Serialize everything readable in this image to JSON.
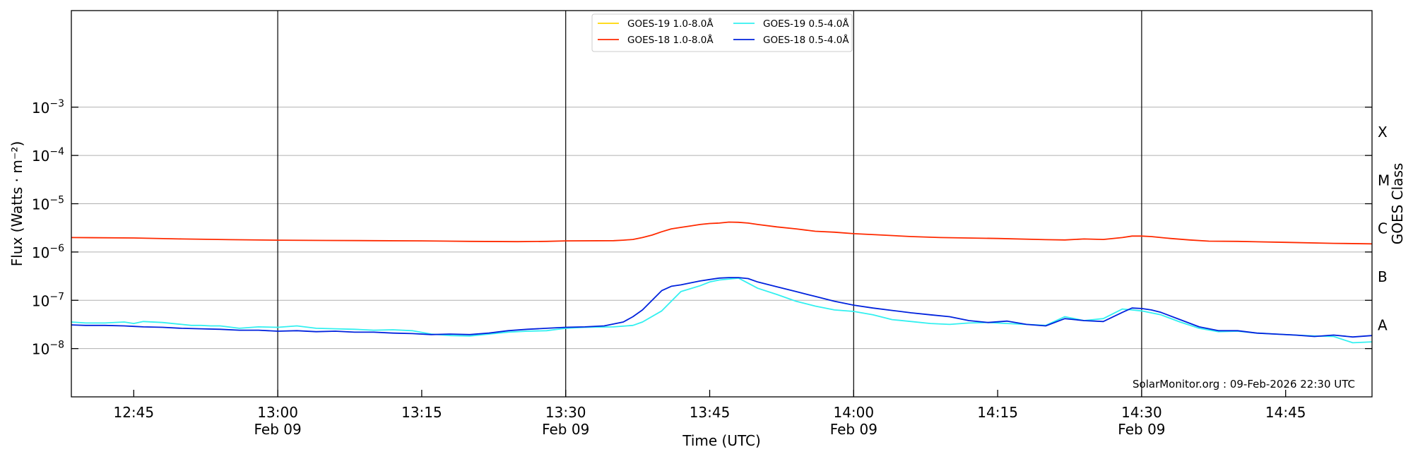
{
  "chart_data": {
    "type": "line",
    "xlabel": "Time (UTC)",
    "ylabel": "Flux (Watts · m⁻²)",
    "ylabel_right": "GOES Class",
    "x_unit": "minutes after 12:00 UTC, 09 Feb",
    "xlim": [
      38.5,
      174
    ],
    "ylim_log10": [
      -9,
      -1.0
    ],
    "y_scale": "log",
    "grid": {
      "horizontal": true,
      "vertical_at_half_hours": true
    },
    "legend_placement": "top-center",
    "credit": "SolarMonitor.org : 09-Feb-2026 22:30 UTC",
    "x_ticks": [
      {
        "m": 45,
        "label": "12:45",
        "date": ""
      },
      {
        "m": 60,
        "label": "13:00",
        "date": "Feb 09"
      },
      {
        "m": 75,
        "label": "13:15",
        "date": ""
      },
      {
        "m": 90,
        "label": "13:30",
        "date": "Feb 09"
      },
      {
        "m": 105,
        "label": "13:45",
        "date": ""
      },
      {
        "m": 120,
        "label": "14:00",
        "date": "Feb 09"
      },
      {
        "m": 135,
        "label": "14:15",
        "date": ""
      },
      {
        "m": 150,
        "label": "14:30",
        "date": "Feb 09"
      },
      {
        "m": 165,
        "label": "14:45",
        "date": ""
      }
    ],
    "y_ticks": [
      {
        "exp": -8,
        "base": "10",
        "sup": "−8"
      },
      {
        "exp": -7,
        "base": "10",
        "sup": "−7"
      },
      {
        "exp": -6,
        "base": "10",
        "sup": "−6"
      },
      {
        "exp": -5,
        "base": "10",
        "sup": "−5"
      },
      {
        "exp": -4,
        "base": "10",
        "sup": "−4"
      },
      {
        "exp": -3,
        "base": "10",
        "sup": "−3"
      }
    ],
    "class_labels": [
      {
        "exp": -7.5,
        "label": "A"
      },
      {
        "exp": -6.5,
        "label": "B"
      },
      {
        "exp": -5.5,
        "label": "C"
      },
      {
        "exp": -4.5,
        "label": "M"
      },
      {
        "exp": -3.5,
        "label": "X"
      }
    ],
    "series": [
      {
        "name": "GOES-19 1.0-8.0Å",
        "color": "#ffd700",
        "log10_flux": []
      },
      {
        "name": "GOES-18 1.0-8.0Å",
        "color": "#ff2a00",
        "x": [
          38.5,
          45,
          50,
          55,
          60,
          65,
          70,
          75,
          80,
          85,
          88,
          90,
          95,
          96,
          97,
          98,
          99,
          100,
          101,
          102,
          103,
          104,
          105,
          106,
          107,
          108,
          109,
          110,
          112,
          114,
          115,
          116,
          118,
          120,
          123,
          126,
          129,
          135,
          140,
          142,
          144,
          146,
          148,
          149,
          150,
          151,
          152,
          153,
          155,
          157,
          160,
          165,
          170,
          174
        ],
        "log10_flux": [
          -5.7,
          -5.71,
          -5.73,
          -5.745,
          -5.755,
          -5.76,
          -5.765,
          -5.77,
          -5.78,
          -5.785,
          -5.78,
          -5.77,
          -5.765,
          -5.755,
          -5.74,
          -5.7,
          -5.65,
          -5.58,
          -5.52,
          -5.49,
          -5.46,
          -5.43,
          -5.41,
          -5.4,
          -5.38,
          -5.385,
          -5.4,
          -5.43,
          -5.48,
          -5.52,
          -5.545,
          -5.57,
          -5.59,
          -5.62,
          -5.65,
          -5.68,
          -5.7,
          -5.72,
          -5.745,
          -5.75,
          -5.73,
          -5.74,
          -5.7,
          -5.67,
          -5.67,
          -5.68,
          -5.7,
          -5.72,
          -5.75,
          -5.775,
          -5.78,
          -5.8,
          -5.82,
          -5.83
        ]
      },
      {
        "name": "GOES-19 0.5-4.0Å",
        "color": "#33f0f0",
        "x": [
          38.5,
          40,
          42,
          44,
          45,
          46,
          48,
          50,
          51,
          52,
          53,
          54,
          56,
          58,
          60,
          62,
          64,
          66,
          68,
          70,
          72,
          74,
          76,
          78,
          80,
          82,
          84,
          86,
          88,
          90,
          92,
          95,
          97,
          98,
          100,
          102,
          104,
          105,
          106,
          108,
          110,
          112,
          114,
          116,
          118,
          120,
          122,
          124,
          126,
          128,
          130,
          132,
          134,
          136,
          138,
          140,
          142,
          144,
          146,
          148,
          149,
          150,
          152,
          154,
          156,
          158,
          160,
          162,
          164,
          166,
          168,
          170,
          172,
          174
        ],
        "log10_flux": [
          -7.45,
          -7.47,
          -7.47,
          -7.45,
          -7.48,
          -7.44,
          -7.46,
          -7.5,
          -7.52,
          -7.52,
          -7.53,
          -7.53,
          -7.58,
          -7.55,
          -7.56,
          -7.53,
          -7.58,
          -7.59,
          -7.6,
          -7.62,
          -7.61,
          -7.63,
          -7.7,
          -7.73,
          -7.74,
          -7.7,
          -7.66,
          -7.64,
          -7.63,
          -7.58,
          -7.56,
          -7.55,
          -7.52,
          -7.45,
          -7.22,
          -6.82,
          -6.7,
          -6.62,
          -6.58,
          -6.54,
          -6.75,
          -6.88,
          -7.02,
          -7.12,
          -7.2,
          -7.23,
          -7.3,
          -7.4,
          -7.44,
          -7.48,
          -7.5,
          -7.47,
          -7.46,
          -7.48,
          -7.5,
          -7.52,
          -7.34,
          -7.42,
          -7.38,
          -7.18,
          -7.2,
          -7.22,
          -7.3,
          -7.45,
          -7.58,
          -7.65,
          -7.64,
          -7.68,
          -7.7,
          -7.72,
          -7.74,
          -7.75,
          -7.88,
          -7.86
        ]
      },
      {
        "name": "GOES-18 0.5-4.0Å",
        "color": "#0022dd",
        "x": [
          38.5,
          40,
          42,
          44,
          45,
          46,
          48,
          50,
          52,
          54,
          56,
          58,
          60,
          62,
          64,
          66,
          68,
          70,
          72,
          74,
          76,
          78,
          80,
          82,
          84,
          86,
          88,
          90,
          92,
          94,
          96,
          97,
          98,
          99,
          100,
          101,
          102,
          103,
          104,
          105,
          106,
          107,
          108,
          109,
          110,
          112,
          114,
          116,
          118,
          120,
          122,
          124,
          126,
          128,
          130,
          132,
          134,
          136,
          138,
          140,
          142,
          144,
          146,
          148,
          149,
          150,
          151,
          152,
          154,
          156,
          158,
          160,
          162,
          164,
          166,
          168,
          170,
          172,
          174
        ],
        "log10_flux": [
          -7.51,
          -7.52,
          -7.52,
          -7.53,
          -7.54,
          -7.55,
          -7.56,
          -7.58,
          -7.59,
          -7.6,
          -7.62,
          -7.62,
          -7.64,
          -7.63,
          -7.65,
          -7.64,
          -7.66,
          -7.66,
          -7.68,
          -7.69,
          -7.71,
          -7.7,
          -7.71,
          -7.68,
          -7.63,
          -7.6,
          -7.58,
          -7.56,
          -7.55,
          -7.53,
          -7.45,
          -7.34,
          -7.2,
          -7.0,
          -6.8,
          -6.71,
          -6.68,
          -6.64,
          -6.6,
          -6.57,
          -6.54,
          -6.53,
          -6.53,
          -6.55,
          -6.62,
          -6.72,
          -6.82,
          -6.92,
          -7.02,
          -7.1,
          -7.16,
          -7.21,
          -7.26,
          -7.3,
          -7.34,
          -7.42,
          -7.46,
          -7.43,
          -7.5,
          -7.53,
          -7.38,
          -7.42,
          -7.44,
          -7.25,
          -7.16,
          -7.17,
          -7.2,
          -7.25,
          -7.4,
          -7.55,
          -7.63,
          -7.63,
          -7.68,
          -7.7,
          -7.72,
          -7.75,
          -7.72,
          -7.76,
          -7.73
        ]
      }
    ]
  }
}
